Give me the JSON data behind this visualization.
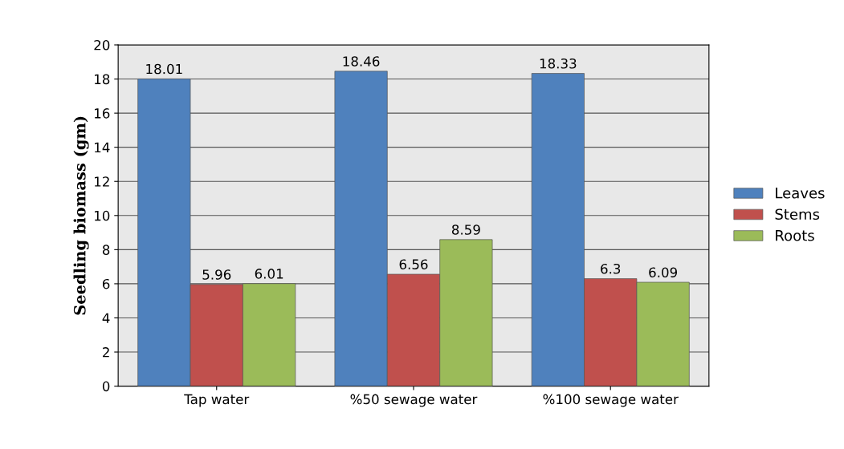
{
  "chart_data": {
    "type": "bar",
    "ylabel": "Seedling biomass (gm)",
    "categories": [
      "Tap water",
      "%50 sewage water",
      "%100 sewage water"
    ],
    "series": [
      {
        "name": "Leaves",
        "color": "#4f81bd",
        "values": [
          18.01,
          18.46,
          18.33
        ]
      },
      {
        "name": "Stems",
        "color": "#c0504d",
        "values": [
          5.96,
          6.56,
          6.3
        ]
      },
      {
        "name": "Roots",
        "color": "#9bbb59",
        "values": [
          6.01,
          8.59,
          6.09
        ]
      }
    ],
    "ylim": [
      0,
      20
    ],
    "yticks": [
      0,
      2,
      4,
      6,
      8,
      10,
      12,
      14,
      16,
      18,
      20
    ],
    "grid": "y",
    "legend": "right",
    "data_labels": true
  }
}
